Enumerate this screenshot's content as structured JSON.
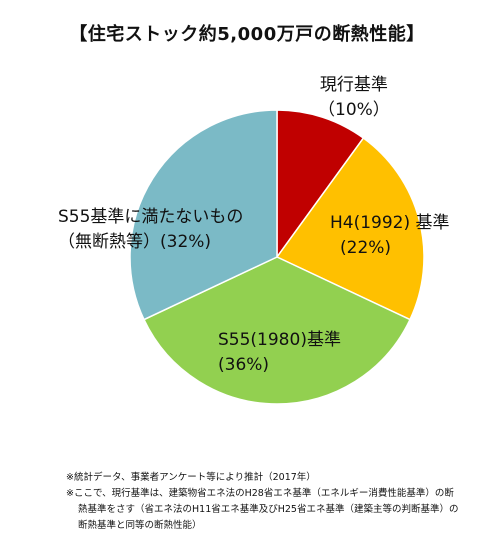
{
  "title": "【住宅ストック約5,000万戸の断熱性能】",
  "chart_data": {
    "type": "pie",
    "title": "【住宅ストック約5,000万戸の断熱性能】",
    "start_angle_deg": 0,
    "direction": "clockwise",
    "slices": [
      {
        "label": "現行基準",
        "pct_label": "（10%）",
        "value": 10,
        "color": "#C00000"
      },
      {
        "label": "H4(1992) 基準",
        "pct_label": "(22%)",
        "value": 22,
        "color": "#FFC000"
      },
      {
        "label": "S55(1980)基準",
        "pct_label": "(36%)",
        "value": 36,
        "color": "#92D050"
      },
      {
        "label": "S55基準に満たないもの",
        "pct_label": "（無断熱等）(32%)",
        "value": 32,
        "color": "#7BBAC6"
      }
    ]
  },
  "notes": [
    "※統計データ、事業者アンケート等により推計（2017年）",
    "※ここで、現行基準は、建築物省エネ法のH28省エネ基準（エネルギー消費性能基準）の断",
    "熱基準をさす（省エネ法のH11省エネ基準及びH25省エネ基準（建築主等の判断基準）の",
    "断熱基準と同等の断熱性能）"
  ]
}
